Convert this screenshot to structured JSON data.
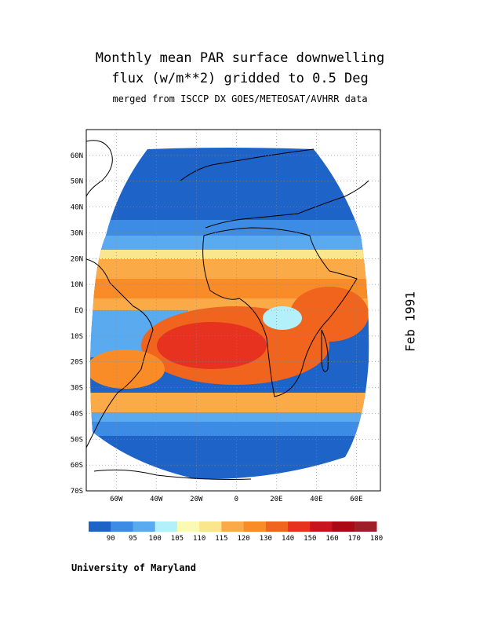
{
  "title_line1": "Monthly mean PAR surface downwelling",
  "title_line2": "flux (w/m**2) gridded to 0.5 Deg",
  "title_line3": "merged from ISCCP DX GOES/METEOSAT/AVHRR data",
  "date_label": "Feb 1991",
  "footer": "University of Maryland",
  "map": {
    "lat_labels": [
      "60N",
      "50N",
      "40N",
      "30N",
      "20N",
      "10N",
      "EQ",
      "10S",
      "20S",
      "30S",
      "40S",
      "50S",
      "60S",
      "70S"
    ],
    "lon_labels": [
      "60W",
      "40W",
      "20W",
      "0",
      "20E",
      "40E",
      "60E"
    ],
    "lon_range": [
      -75,
      72
    ],
    "lat_range": [
      -70,
      70
    ]
  },
  "legend": {
    "labels": [
      "90",
      "95",
      "100",
      "105",
      "110",
      "115",
      "120",
      "130",
      "140",
      "150",
      "160",
      "170",
      "180"
    ],
    "colors": [
      "#1e64c8",
      "#3c8ce6",
      "#5aaaf0",
      "#b4f0fa",
      "#fafab4",
      "#fae68c",
      "#faaa46",
      "#fa8c28",
      "#f0641e",
      "#e6321e",
      "#c8141e",
      "#aa0a14",
      "#a01e28"
    ]
  }
}
